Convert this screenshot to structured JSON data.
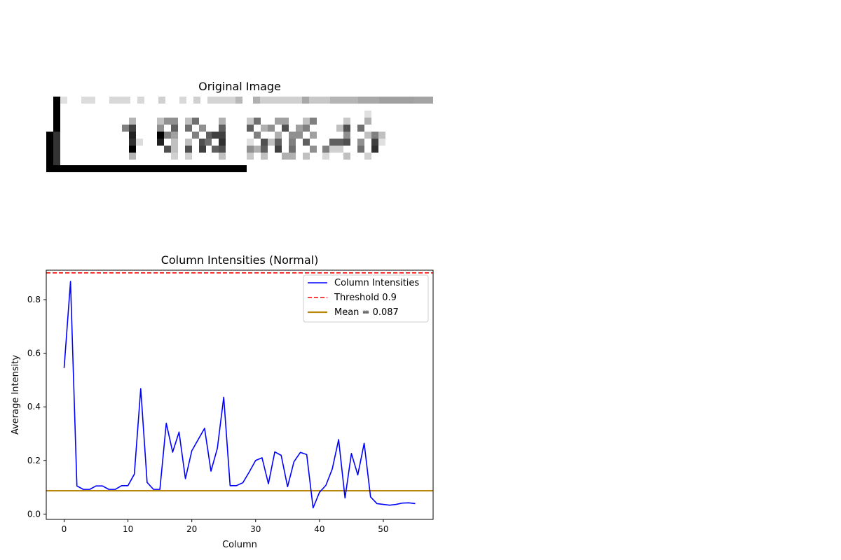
{
  "image_panel": {
    "title": "Original Image"
  },
  "chart_data": {
    "type": "line",
    "title": "Column Intensities (Normal)",
    "xlabel": "Column",
    "ylabel": "Average Intensity",
    "xlim": [
      -2.8,
      57.8
    ],
    "ylim": [
      -0.02,
      0.91
    ],
    "xticks": [
      0,
      10,
      20,
      30,
      40,
      50
    ],
    "yticks": [
      0.0,
      0.2,
      0.4,
      0.6,
      0.8
    ],
    "ytick_labels": [
      "0.0",
      "0.2",
      "0.4",
      "0.6",
      "0.8"
    ],
    "grid": false,
    "legend_position": "top-right",
    "series": [
      {
        "name": "Column Intensities",
        "color": "#0000ff",
        "style": "solid",
        "x": [
          0,
          1,
          2,
          3,
          4,
          5,
          6,
          7,
          8,
          9,
          10,
          11,
          12,
          13,
          14,
          15,
          16,
          17,
          18,
          19,
          20,
          21,
          22,
          23,
          24,
          25,
          26,
          27,
          28,
          29,
          30,
          31,
          32,
          33,
          34,
          35,
          36,
          37,
          38,
          39,
          40,
          41,
          42,
          43,
          44,
          45,
          46,
          47,
          48,
          49,
          50,
          51,
          52,
          53,
          54,
          55
        ],
        "values": [
          0.545,
          0.868,
          0.105,
          0.092,
          0.092,
          0.105,
          0.105,
          0.092,
          0.092,
          0.106,
          0.106,
          0.149,
          0.468,
          0.118,
          0.092,
          0.092,
          0.339,
          0.231,
          0.306,
          0.132,
          0.236,
          0.278,
          0.32,
          0.16,
          0.245,
          0.436,
          0.106,
          0.106,
          0.117,
          0.157,
          0.2,
          0.21,
          0.113,
          0.232,
          0.219,
          0.102,
          0.195,
          0.23,
          0.222,
          0.023,
          0.081,
          0.107,
          0.168,
          0.278,
          0.06,
          0.226,
          0.146,
          0.264,
          0.064,
          0.039,
          0.036,
          0.033,
          0.036,
          0.041,
          0.042,
          0.039
        ]
      }
    ],
    "reference_lines": [
      {
        "name": "Threshold 0.9",
        "value": 0.9,
        "color": "#ff0000",
        "style": "dashed"
      },
      {
        "name": "Mean = 0.087",
        "value": 0.087,
        "color": "#b8860b",
        "style": "solid"
      }
    ]
  }
}
